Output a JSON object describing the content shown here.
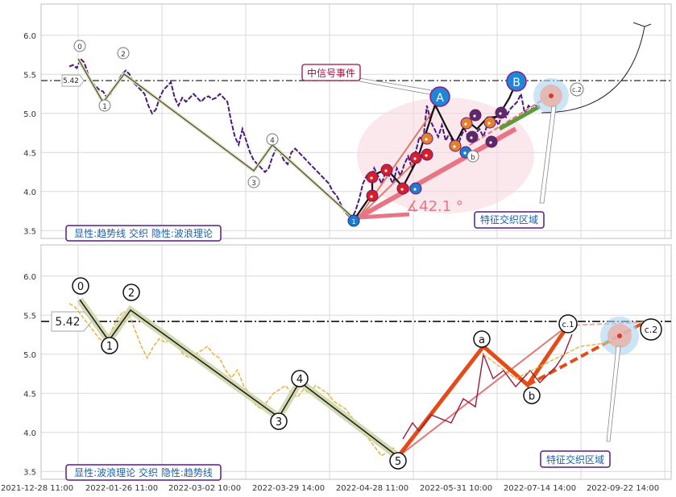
{
  "chart_data": [
    {
      "type": "line",
      "ylim": [
        3.4,
        6.4
      ],
      "yticks": [
        "3.5",
        "4.0",
        "4.5",
        "5.0",
        "5.5",
        "6.0"
      ],
      "reference_line": {
        "value": 5.42,
        "label": "5.42"
      },
      "wave_labels": [
        "0",
        "1",
        "2",
        "3",
        "4",
        "1",
        "A",
        "B",
        "c.2",
        "b"
      ],
      "trend_angle_label": "∡42.1 °",
      "annotations": {
        "signal": "中信号事件",
        "zone": "特征交织区域",
        "legend": "显性:趋势线 交织 隐性:波浪理论"
      },
      "series": [
        {
          "values": [
            5.6,
            5.62,
            5.58,
            5.7,
            5.65,
            5.5,
            5.4,
            5.35,
            5.3,
            5.28,
            5.2,
            5.25,
            5.35,
            5.42,
            5.5,
            5.55,
            5.5,
            5.4,
            5.35,
            5.3,
            5.25,
            5.1,
            5.0,
            5.05,
            5.2,
            5.3,
            5.35,
            5.4,
            5.2,
            5.1,
            5.2,
            5.15,
            5.2,
            5.25,
            5.2,
            5.15,
            5.2,
            5.22,
            5.18,
            5.2,
            5.25,
            5.2,
            5.15,
            4.9,
            4.7,
            4.6,
            4.8,
            4.65,
            4.5,
            4.4,
            4.35,
            4.3,
            4.25,
            4.3,
            4.45,
            4.55,
            4.5,
            4.4,
            4.35,
            4.5,
            4.55,
            4.5,
            4.45,
            4.4,
            4.35,
            4.3,
            4.25,
            4.2,
            4.15,
            4.1,
            4.0,
            3.95,
            3.85,
            3.75,
            3.7,
            3.65,
            3.75,
            3.9,
            4.1,
            4.2,
            4.15,
            4.3,
            4.2,
            4.1,
            4.25,
            4.2,
            4.1,
            4.3,
            4.2,
            4.35,
            4.45,
            4.3,
            4.5,
            4.7,
            4.65,
            5.1,
            4.9,
            4.8,
            4.7,
            4.85,
            4.65,
            4.75,
            4.6,
            4.55,
            4.7,
            4.8,
            4.7,
            4.65,
            4.75,
            4.8,
            4.7,
            4.85,
            4.9,
            4.95,
            4.85,
            5.0,
            4.95,
            5.05,
            5.1,
            5.15,
            5.25,
            5.0,
            5.1,
            5.05,
            5.1,
            5.08
          ]
        }
      ]
    },
    {
      "type": "line",
      "ylim": [
        3.4,
        6.4
      ],
      "yticks": [
        "3.5",
        "4.0",
        "4.5",
        "5.0",
        "5.5",
        "6.0"
      ],
      "reference_line": {
        "value": 5.42,
        "label": "5.42"
      },
      "wave_labels": [
        "0",
        "1",
        "2",
        "3",
        "4",
        "5",
        "a",
        "b",
        "c.1",
        "c.2"
      ],
      "annotations": {
        "zone": "特征交织区域",
        "legend": "显性:波浪理论 交织 隐性:趋势线"
      },
      "x_tick_labels": [
        "2021-12-28 11:00",
        "2022-01-26 11:00",
        "2022-03-02 10:00",
        "2022-03-29 14:00",
        "2022-04-28 11:00",
        "2022-05-31 10:00",
        "2022-07-14 14:00",
        "2022-09-22 14:00"
      ],
      "series": [
        {
          "values": [
            5.65,
            5.6,
            5.5,
            5.4,
            5.3,
            5.2,
            5.15,
            5.3,
            5.45,
            5.55,
            5.5,
            5.3,
            5.1,
            4.95,
            5.1,
            5.2,
            5.15,
            5.2,
            5.1,
            5.0,
            4.95,
            5.0,
            5.05,
            5.1,
            5.0,
            4.95,
            4.8,
            4.7,
            4.8,
            4.6,
            4.5,
            4.35,
            4.3,
            4.4,
            4.5,
            4.55,
            4.6,
            4.5,
            4.45,
            4.55,
            4.5,
            4.6,
            4.55,
            4.5,
            4.4,
            4.35,
            4.3,
            4.2,
            4.1,
            4.0,
            3.9,
            3.8,
            3.7,
            3.75,
            3.8,
            3.7
          ]
        }
      ]
    }
  ]
}
